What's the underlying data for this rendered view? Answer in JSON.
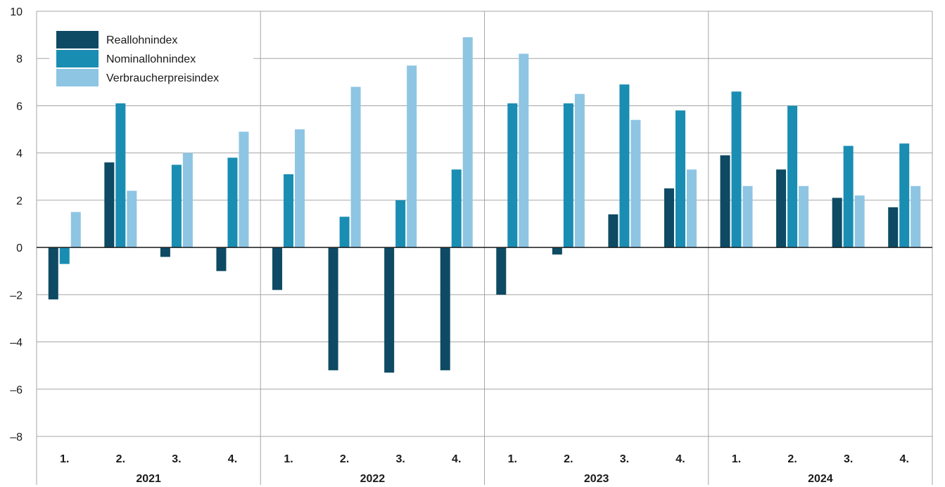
{
  "chart_data": {
    "type": "bar",
    "title": "",
    "xlabel": "",
    "ylabel": "",
    "ylim": [
      -8,
      10
    ],
    "yticks": [
      "10",
      "8",
      "6",
      "4",
      "2",
      "0",
      "–2",
      "–4",
      "–6",
      "–8"
    ],
    "grid": true,
    "legend_position": "top-left",
    "years": [
      "2021",
      "2022",
      "2023",
      "2024"
    ],
    "quarters": [
      "1.",
      "2.",
      "3.",
      "4."
    ],
    "series": [
      {
        "name": "Reallohnindex",
        "color": "#0e4a63",
        "values": [
          -2.2,
          3.6,
          -0.4,
          -1.0,
          -1.8,
          -5.2,
          -5.3,
          -5.2,
          -2.0,
          -0.3,
          1.4,
          2.5,
          3.9,
          3.3,
          2.1,
          1.7
        ]
      },
      {
        "name": "Nominallohnindex",
        "color": "#1a8db3",
        "values": [
          -0.7,
          6.1,
          3.5,
          3.8,
          3.1,
          1.3,
          2.0,
          3.3,
          6.1,
          6.1,
          6.9,
          5.8,
          6.6,
          6.0,
          4.3,
          4.4
        ]
      },
      {
        "name": "Verbraucherpreisindex",
        "color": "#8ec5e3",
        "values": [
          1.5,
          2.4,
          4.0,
          4.9,
          5.0,
          6.8,
          7.7,
          8.9,
          8.2,
          6.5,
          5.4,
          3.3,
          2.6,
          2.6,
          2.2,
          2.6
        ]
      }
    ]
  }
}
